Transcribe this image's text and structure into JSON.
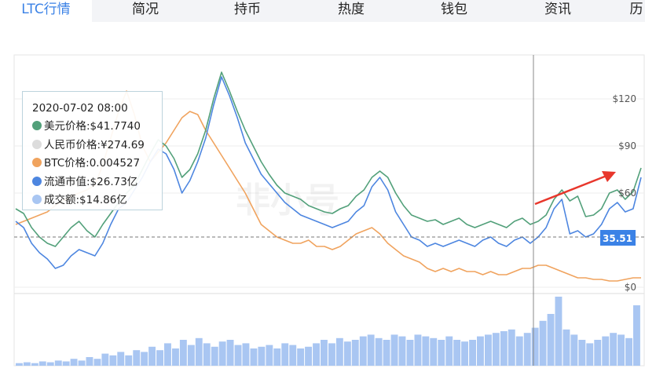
{
  "tabs": [
    {
      "label": "LTC行情",
      "active": true
    },
    {
      "label": "简况",
      "active": false
    },
    {
      "label": "持币",
      "active": false
    },
    {
      "label": "热度",
      "active": false
    },
    {
      "label": "钱包",
      "active": false
    },
    {
      "label": "资讯",
      "active": false
    },
    {
      "label": "历",
      "active": false
    }
  ],
  "tooltip": {
    "date": "2020-07-02 08:00",
    "rows": [
      {
        "text": "美元价格:$41.7740",
        "color": "#52a07a"
      },
      {
        "text": "人民币价格:¥274.69",
        "color": "#dcdcdc"
      },
      {
        "text": "BTC价格:0.004527",
        "color": "#f0a35e"
      },
      {
        "text": "流通市值:$26.73亿",
        "color": "#4d86e0"
      },
      {
        "text": "成交额:$14.86亿",
        "color": "#a9c6f2"
      }
    ]
  },
  "watermark": "非小号",
  "chart_data": {
    "type": "line",
    "y_axis": {
      "ticks": [
        "$120",
        "$90",
        "$60",
        "$0"
      ],
      "range": [
        0,
        140
      ],
      "position": "right"
    },
    "current_price_label": "35.51",
    "current_price": 35.51,
    "grid": true,
    "colors": {
      "usd_price": "#52a07a",
      "btc_price": "#f0a35e",
      "market_cap": "#4d86e0",
      "volume": "#a9c6f2",
      "arrow": "#e8372c",
      "price_label_bg": "#3b82e6"
    },
    "series": [
      {
        "key": "usd_price",
        "values": [
          50,
          47,
          38,
          32,
          28,
          26,
          32,
          38,
          42,
          36,
          32,
          40,
          47,
          54,
          60,
          65,
          75,
          85,
          94,
          90,
          82,
          70,
          75,
          85,
          100,
          120,
          137,
          125,
          112,
          100,
          90,
          80,
          72,
          65,
          60,
          58,
          56,
          52,
          50,
          48,
          47,
          50,
          52,
          58,
          62,
          70,
          74,
          70,
          60,
          52,
          46,
          44,
          42,
          43,
          40,
          42,
          44,
          40,
          38,
          40,
          42,
          40,
          38,
          42,
          44,
          40,
          42,
          46,
          56,
          62,
          55,
          58,
          45,
          46,
          50,
          60,
          62,
          56,
          61,
          76
        ]
      },
      {
        "key": "btc_price",
        "values": [
          40,
          42,
          44,
          46,
          48,
          52,
          55,
          58,
          60,
          62,
          65,
          78,
          95,
          112,
          125,
          110,
          90,
          80,
          86,
          92,
          100,
          108,
          112,
          110,
          100,
          92,
          84,
          76,
          68,
          60,
          50,
          40,
          36,
          32,
          30,
          28,
          28,
          30,
          26,
          26,
          24,
          26,
          30,
          34,
          36,
          38,
          34,
          28,
          24,
          20,
          18,
          16,
          12,
          10,
          12,
          10,
          12,
          10,
          10,
          8,
          10,
          8,
          8,
          10,
          12,
          12,
          14,
          14,
          12,
          10,
          8,
          6,
          6,
          5,
          5,
          4,
          4,
          5,
          6,
          6
        ]
      },
      {
        "key": "market_cap",
        "values": [
          42,
          38,
          28,
          22,
          18,
          12,
          14,
          20,
          24,
          22,
          20,
          28,
          40,
          50,
          54,
          62,
          70,
          80,
          88,
          85,
          75,
          60,
          68,
          80,
          95,
          116,
          134,
          122,
          108,
          92,
          82,
          72,
          66,
          60,
          54,
          50,
          46,
          44,
          42,
          40,
          38,
          40,
          42,
          48,
          52,
          64,
          70,
          62,
          48,
          40,
          32,
          30,
          26,
          28,
          26,
          28,
          30,
          28,
          26,
          30,
          32,
          28,
          26,
          30,
          32,
          28,
          32,
          38,
          50,
          56,
          34,
          36,
          32,
          34,
          40,
          50,
          54,
          48,
          50,
          70
        ]
      },
      {
        "key": "volume",
        "values": [
          3,
          4,
          3,
          5,
          4,
          6,
          5,
          8,
          6,
          10,
          8,
          14,
          12,
          16,
          12,
          18,
          16,
          22,
          18,
          26,
          20,
          30,
          24,
          32,
          26,
          22,
          28,
          30,
          24,
          26,
          20,
          22,
          24,
          20,
          26,
          24,
          20,
          22,
          26,
          30,
          26,
          32,
          28,
          30,
          34,
          36,
          32,
          30,
          36,
          34,
          30,
          36,
          34,
          32,
          30,
          34,
          30,
          28,
          30,
          34,
          36,
          38,
          40,
          42,
          34,
          38,
          44,
          52,
          60,
          80,
          42,
          36,
          30,
          26,
          30,
          34,
          38,
          36,
          32,
          70
        ]
      }
    ]
  }
}
